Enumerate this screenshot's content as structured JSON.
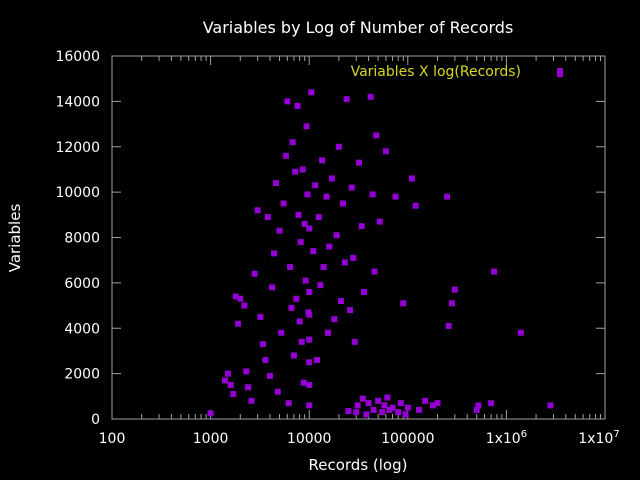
{
  "chart_data": {
    "type": "scatter",
    "title": "Variables by Log of Number of Records",
    "xlabel": "Records (log)",
    "ylabel": "Variables",
    "x_scale": "log",
    "xlim": [
      100,
      10000000
    ],
    "ylim": [
      0,
      16000
    ],
    "grid": false,
    "legend_position": "top-right",
    "x_ticks": [
      {
        "value": 100,
        "label": "100"
      },
      {
        "value": 1000,
        "label": "1000"
      },
      {
        "value": 10000,
        "label": "10000"
      },
      {
        "value": 100000,
        "label": "100000"
      },
      {
        "value": 1000000,
        "label": "1x10",
        "exp": "6"
      },
      {
        "value": 10000000,
        "label": "1x10",
        "exp": "7"
      }
    ],
    "y_ticks": [
      {
        "value": 0,
        "label": "0"
      },
      {
        "value": 2000,
        "label": "2000"
      },
      {
        "value": 4000,
        "label": "4000"
      },
      {
        "value": 6000,
        "label": "6000"
      },
      {
        "value": 8000,
        "label": "8000"
      },
      {
        "value": 10000,
        "label": "10000"
      },
      {
        "value": 12000,
        "label": "12000"
      },
      {
        "value": 14000,
        "label": "14000"
      },
      {
        "value": 16000,
        "label": "16000"
      }
    ],
    "series": [
      {
        "name": "Variables X log(Records)",
        "color": "#9400d3",
        "points": [
          [
            1000,
            250
          ],
          [
            1400,
            1700
          ],
          [
            1500,
            2000
          ],
          [
            1600,
            1500
          ],
          [
            1700,
            1100
          ],
          [
            1800,
            5400
          ],
          [
            2000,
            5300
          ],
          [
            1900,
            4200
          ],
          [
            2200,
            5000
          ],
          [
            2300,
            2100
          ],
          [
            2400,
            1400
          ],
          [
            2600,
            800
          ],
          [
            2800,
            6400
          ],
          [
            3000,
            9200
          ],
          [
            3200,
            4500
          ],
          [
            3400,
            3300
          ],
          [
            3600,
            2600
          ],
          [
            3800,
            8900
          ],
          [
            4000,
            1900
          ],
          [
            4200,
            5800
          ],
          [
            4400,
            7300
          ],
          [
            4600,
            10400
          ],
          [
            4800,
            1200
          ],
          [
            5000,
            8300
          ],
          [
            5200,
            3800
          ],
          [
            5500,
            9500
          ],
          [
            5800,
            11600
          ],
          [
            6000,
            14000
          ],
          [
            6200,
            700
          ],
          [
            6400,
            6700
          ],
          [
            6600,
            4900
          ],
          [
            6800,
            12200
          ],
          [
            7000,
            2800
          ],
          [
            7200,
            10900
          ],
          [
            7400,
            5300
          ],
          [
            7600,
            13800
          ],
          [
            7800,
            9000
          ],
          [
            8000,
            4300
          ],
          [
            8200,
            7800
          ],
          [
            8400,
            3400
          ],
          [
            8600,
            11000
          ],
          [
            8800,
            1600
          ],
          [
            9000,
            8600
          ],
          [
            9200,
            6100
          ],
          [
            9400,
            12900
          ],
          [
            9600,
            9900
          ],
          [
            9800,
            4700
          ],
          [
            10000,
            8400
          ],
          [
            10000,
            600
          ],
          [
            10000,
            1500
          ],
          [
            10000,
            2500
          ],
          [
            10000,
            3500
          ],
          [
            10000,
            4600
          ],
          [
            10000,
            5600
          ],
          [
            10500,
            14400
          ],
          [
            11000,
            7400
          ],
          [
            11500,
            10300
          ],
          [
            12000,
            2600
          ],
          [
            12500,
            8900
          ],
          [
            13000,
            5900
          ],
          [
            13500,
            11400
          ],
          [
            14000,
            6700
          ],
          [
            15000,
            9800
          ],
          [
            15500,
            3800
          ],
          [
            16000,
            7600
          ],
          [
            17000,
            10600
          ],
          [
            18000,
            4400
          ],
          [
            19000,
            8100
          ],
          [
            20000,
            12000
          ],
          [
            21000,
            5200
          ],
          [
            22000,
            9500
          ],
          [
            23000,
            6900
          ],
          [
            24000,
            14100
          ],
          [
            25000,
            350
          ],
          [
            26000,
            4800
          ],
          [
            27000,
            10200
          ],
          [
            28000,
            7100
          ],
          [
            29000,
            3400
          ],
          [
            30000,
            300
          ],
          [
            31000,
            600
          ],
          [
            32000,
            11300
          ],
          [
            34000,
            8500
          ],
          [
            35000,
            900
          ],
          [
            36000,
            5600
          ],
          [
            38000,
            200
          ],
          [
            40000,
            700
          ],
          [
            42000,
            14200
          ],
          [
            44000,
            9900
          ],
          [
            45000,
            400
          ],
          [
            46000,
            6500
          ],
          [
            48000,
            12500
          ],
          [
            50000,
            800
          ],
          [
            52000,
            8700
          ],
          [
            55000,
            300
          ],
          [
            58000,
            600
          ],
          [
            60000,
            11800
          ],
          [
            62000,
            950
          ],
          [
            65000,
            400
          ],
          [
            70000,
            500
          ],
          [
            75000,
            9800
          ],
          [
            80000,
            300
          ],
          [
            85000,
            700
          ],
          [
            90000,
            5100
          ],
          [
            95000,
            200
          ],
          [
            100000,
            500
          ],
          [
            110000,
            10600
          ],
          [
            120000,
            9400
          ],
          [
            130000,
            400
          ],
          [
            150000,
            800
          ],
          [
            180000,
            600
          ],
          [
            200000,
            700
          ],
          [
            250000,
            9800
          ],
          [
            260000,
            4100
          ],
          [
            280000,
            5100
          ],
          [
            300000,
            5700
          ],
          [
            500000,
            400
          ],
          [
            520000,
            600
          ],
          [
            700000,
            700
          ],
          [
            750000,
            6500
          ],
          [
            1400000,
            3800
          ],
          [
            2800000,
            600
          ],
          [
            3500000,
            15200
          ]
        ]
      }
    ]
  }
}
